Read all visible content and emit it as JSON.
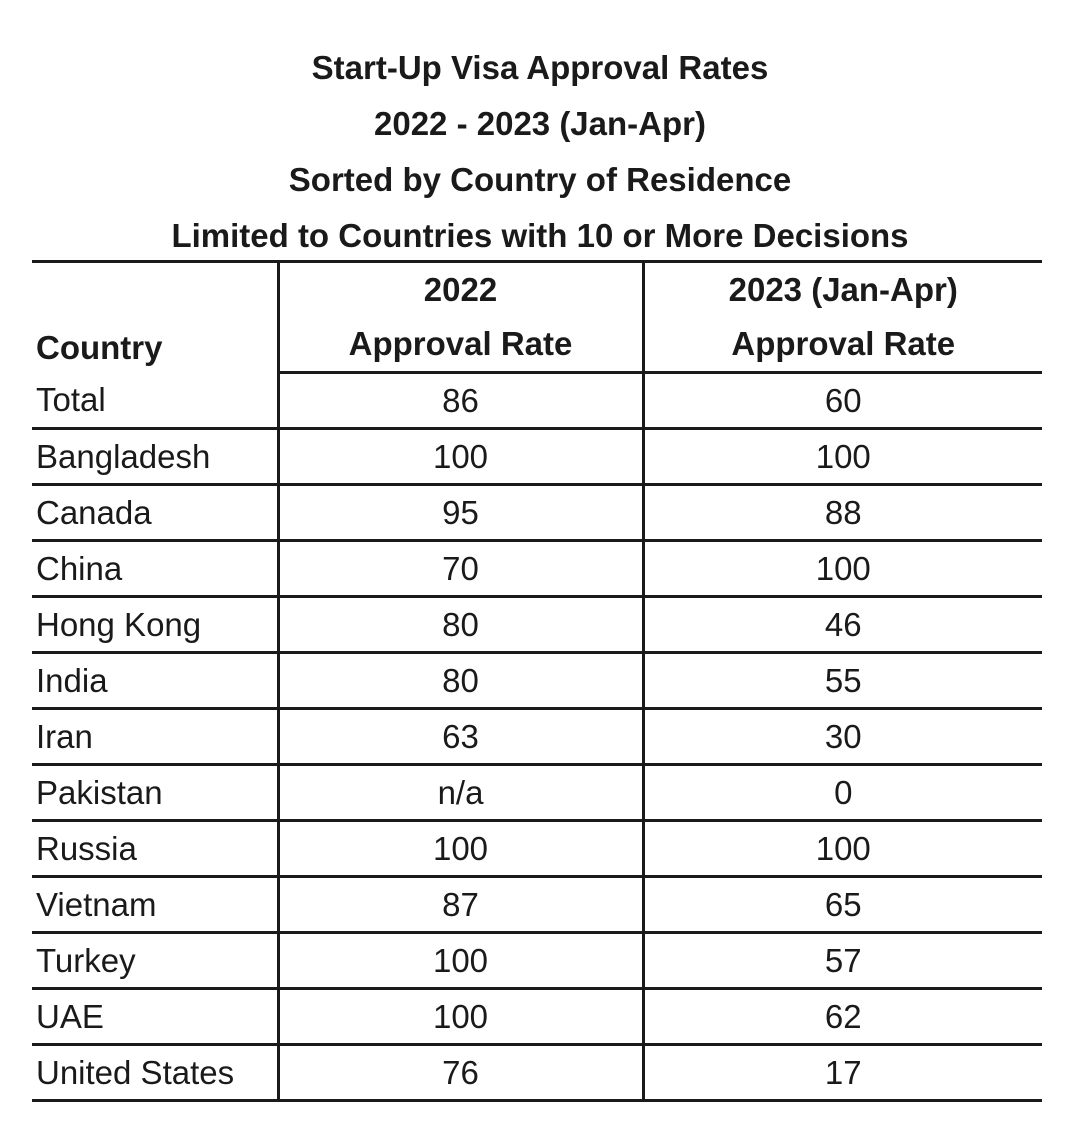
{
  "title_lines": [
    "Start-Up Visa Approval Rates",
    "2022 - 2023 (Jan-Apr)",
    "Sorted by Country of Residence",
    "Limited to Countries with 10 or More Decisions"
  ],
  "chart_data": {
    "type": "table",
    "title": "Start-Up Visa Approval Rates 2022 - 2023 (Jan-Apr) Sorted by Country of Residence Limited to Countries with 10 or More Decisions",
    "columns": [
      {
        "top": "",
        "bottom": "Country"
      },
      {
        "top": "2022",
        "bottom": "Approval Rate"
      },
      {
        "top": "2023 (Jan-Apr)",
        "bottom": "Approval Rate"
      }
    ],
    "rows": [
      {
        "country": "Total",
        "rate_2022": "86",
        "rate_2023": "60"
      },
      {
        "country": "Bangladesh",
        "rate_2022": "100",
        "rate_2023": "100"
      },
      {
        "country": "Canada",
        "rate_2022": "95",
        "rate_2023": "88"
      },
      {
        "country": "China",
        "rate_2022": "70",
        "rate_2023": "100"
      },
      {
        "country": "Hong Kong",
        "rate_2022": "80",
        "rate_2023": "46"
      },
      {
        "country": "India",
        "rate_2022": "80",
        "rate_2023": "55"
      },
      {
        "country": "Iran",
        "rate_2022": "63",
        "rate_2023": "30"
      },
      {
        "country": "Pakistan",
        "rate_2022": "n/a",
        "rate_2023": "0"
      },
      {
        "country": "Russia",
        "rate_2022": "100",
        "rate_2023": "100"
      },
      {
        "country": "Vietnam",
        "rate_2022": "87",
        "rate_2023": "65"
      },
      {
        "country": "Turkey",
        "rate_2022": "100",
        "rate_2023": "57"
      },
      {
        "country": "UAE",
        "rate_2022": "100",
        "rate_2023": "62"
      },
      {
        "country": "United States",
        "rate_2022": "76",
        "rate_2023": "17"
      }
    ]
  }
}
